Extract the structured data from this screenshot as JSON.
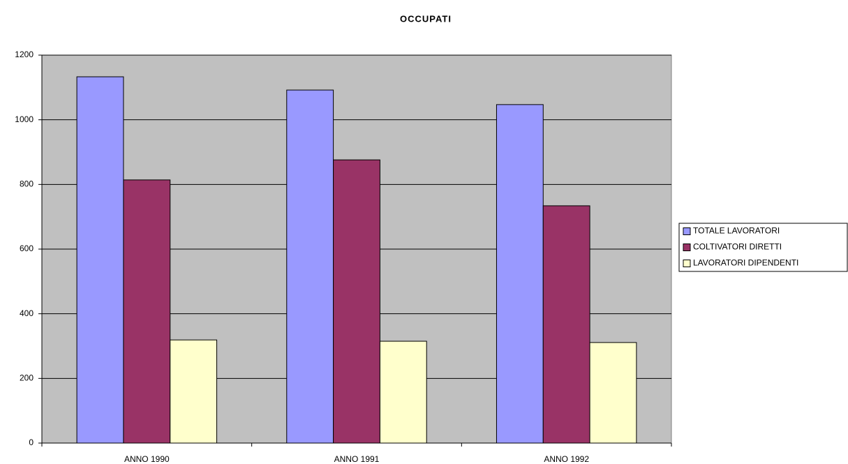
{
  "chart_data": {
    "type": "bar",
    "title": "OCCUPATI",
    "categories": [
      "ANNO 1990",
      "ANNO 1991",
      "ANNO 1992"
    ],
    "series": [
      {
        "name": "TOTALE LAVORATORI",
        "color": "#9999ff",
        "values": [
          1133,
          1092,
          1047
        ]
      },
      {
        "name": "COLTIVATORI DIRETTI",
        "color": "#993366",
        "values": [
          814,
          876,
          734
        ]
      },
      {
        "name": "LAVORATORI DIPENDENTI",
        "color": "#ffffcc",
        "values": [
          319,
          315,
          311
        ]
      }
    ],
    "ylim": [
      0,
      1200
    ],
    "yticks": [
      0,
      200,
      400,
      600,
      800,
      1000,
      1200
    ],
    "grid": true,
    "legend": "right",
    "background": "#c0c0c0"
  }
}
